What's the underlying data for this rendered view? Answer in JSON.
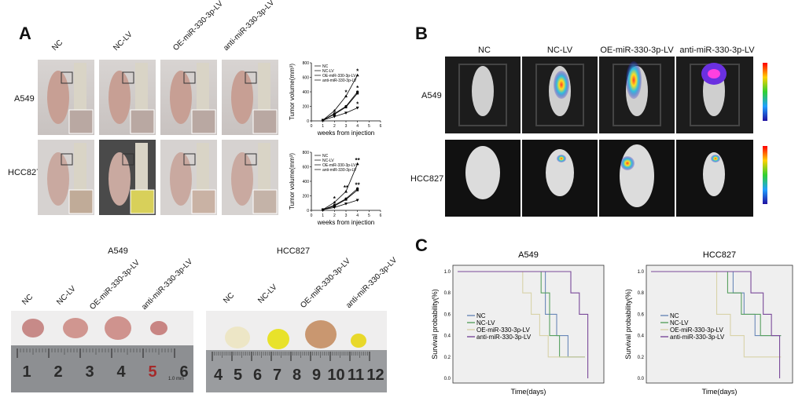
{
  "panels": {
    "a": {
      "letter": "A",
      "columns": [
        "NC",
        "NC-LV",
        "OE-miR-330-3p-LV",
        "anti-miR-330-3p-LV"
      ],
      "rows": [
        "A549",
        "HCC827"
      ]
    },
    "b": {
      "letter": "B",
      "columns": [
        "NC",
        "NC-LV",
        "OE-miR-330-3p-LV",
        "anti-miR-330-3p-LV"
      ],
      "rows": [
        "A549",
        "HCC827"
      ]
    },
    "c": {
      "letter": "C"
    },
    "tumors": {
      "left_title": "A549",
      "right_title": "HCC827",
      "left_labels": [
        "NC",
        "NC-LV",
        "OE-miR-330-3p-LV",
        "anti-miR-330-3p-LV"
      ],
      "right_labels": [
        "NC",
        "NC-LV",
        "OE-miR-330-3p-LV",
        "anti-miR-330-3p-LV"
      ],
      "left_ruler": [
        "1",
        "2",
        "3",
        "4",
        "5",
        "6"
      ],
      "left_ruler_unit": "1.0 mm",
      "right_ruler": [
        "4",
        "5",
        "6",
        "7",
        "8",
        "9",
        "10",
        "11",
        "12"
      ]
    }
  },
  "chart_data": [
    {
      "type": "line",
      "id": "a549-volume",
      "ylabel": "Tumor volume(mm³)",
      "xlabel": "weeks from injection",
      "xlim": [
        0,
        6
      ],
      "ylim": [
        0,
        800
      ],
      "xticks": [
        "0",
        "1",
        "2",
        "3",
        "4",
        "5",
        "6"
      ],
      "yticks": [
        "0",
        "200",
        "400",
        "600",
        "800"
      ],
      "x": [
        1,
        2,
        3,
        4
      ],
      "series": [
        {
          "name": "NC",
          "values": [
            10,
            100,
            200,
            400
          ]
        },
        {
          "name": "NC-LV",
          "values": [
            10,
            90,
            190,
            380
          ]
        },
        {
          "name": "OE-miR-330-3p-LV",
          "values": [
            10,
            140,
            340,
            630
          ]
        },
        {
          "name": "anti-miR-330-3p-LV",
          "values": [
            10,
            60,
            110,
            180
          ]
        }
      ],
      "annotations": [
        {
          "x": 3,
          "y": 340,
          "text": "*"
        },
        {
          "x": 4,
          "y": 630,
          "text": "*"
        },
        {
          "x": 4,
          "y": 400,
          "text": "*"
        },
        {
          "x": 4,
          "y": 180,
          "text": "*"
        }
      ]
    },
    {
      "type": "line",
      "id": "hcc827-volume",
      "ylabel": "Tumor volume(mm³)",
      "xlabel": "weeks from injection",
      "xlim": [
        0,
        6
      ],
      "ylim": [
        0,
        800
      ],
      "xticks": [
        "0",
        "1",
        "2",
        "3",
        "4",
        "5",
        "6"
      ],
      "yticks": [
        "0",
        "200",
        "400",
        "600",
        "800"
      ],
      "x": [
        1,
        2,
        3,
        4
      ],
      "series": [
        {
          "name": "NC",
          "values": [
            10,
            70,
            160,
            300
          ]
        },
        {
          "name": "NC-LV",
          "values": [
            10,
            60,
            150,
            280
          ]
        },
        {
          "name": "OE-miR-330-3p-LV",
          "values": [
            10,
            110,
            260,
            640
          ]
        },
        {
          "name": "anti-miR-330-3p-LV",
          "values": [
            10,
            40,
            90,
            140
          ]
        }
      ],
      "annotations": [
        {
          "x": 2,
          "y": 110,
          "text": "*"
        },
        {
          "x": 3,
          "y": 260,
          "text": "**"
        },
        {
          "x": 4,
          "y": 640,
          "text": "**"
        },
        {
          "x": 4,
          "y": 300,
          "text": "**"
        }
      ]
    },
    {
      "type": "line",
      "id": "a549-survival",
      "title": "A549",
      "ylabel": "Survival probability(%)",
      "xlabel": "Time(days)",
      "ylim": [
        0,
        1
      ],
      "yticks": [
        "0.0",
        "0.2",
        "0.4",
        "0.6",
        "0.8",
        "1.0"
      ],
      "series": [
        {
          "name": "NC",
          "color": "#6a88b8",
          "steps": [
            [
              0,
              1.0
            ],
            [
              0.62,
              1.0
            ],
            [
              0.62,
              0.6
            ],
            [
              0.7,
              0.6
            ],
            [
              0.7,
              0.4
            ],
            [
              0.78,
              0.4
            ],
            [
              0.78,
              0.2
            ],
            [
              0.9,
              0.2
            ]
          ]
        },
        {
          "name": "NC-LV",
          "color": "#58a060",
          "steps": [
            [
              0,
              1.0
            ],
            [
              0.59,
              1.0
            ],
            [
              0.59,
              0.8
            ],
            [
              0.65,
              0.8
            ],
            [
              0.65,
              0.4
            ],
            [
              0.72,
              0.4
            ],
            [
              0.72,
              0.2
            ],
            [
              0.9,
              0.2
            ]
          ]
        },
        {
          "name": "OE-miR-330-3p-LV",
          "color": "#d8d2a8",
          "steps": [
            [
              0,
              1.0
            ],
            [
              0.46,
              1.0
            ],
            [
              0.46,
              0.8
            ],
            [
              0.52,
              0.8
            ],
            [
              0.52,
              0.6
            ],
            [
              0.58,
              0.6
            ],
            [
              0.58,
              0.4
            ],
            [
              0.64,
              0.4
            ],
            [
              0.64,
              0.2
            ],
            [
              0.9,
              0.2
            ]
          ]
        },
        {
          "name": "anti-miR-330-3p-LV",
          "color": "#7a4a9a",
          "steps": [
            [
              0,
              1.0
            ],
            [
              0.8,
              1.0
            ],
            [
              0.8,
              0.8
            ],
            [
              0.86,
              0.8
            ],
            [
              0.86,
              0.6
            ],
            [
              0.92,
              0.6
            ],
            [
              0.92,
              0.0
            ]
          ]
        }
      ]
    },
    {
      "type": "line",
      "id": "hcc827-survival",
      "title": "HCC827",
      "ylabel": "Survival probability(%)",
      "xlabel": "Time(days)",
      "ylim": [
        0,
        1
      ],
      "yticks": [
        "0.0",
        "0.2",
        "0.4",
        "0.6",
        "0.8",
        "1.0"
      ],
      "series": [
        {
          "name": "NC",
          "color": "#6a88b8",
          "steps": [
            [
              0,
              1.0
            ],
            [
              0.6,
              1.0
            ],
            [
              0.6,
              0.8
            ],
            [
              0.68,
              0.8
            ],
            [
              0.68,
              0.6
            ],
            [
              0.76,
              0.6
            ],
            [
              0.76,
              0.4
            ],
            [
              0.95,
              0.4
            ]
          ]
        },
        {
          "name": "NC-LV",
          "color": "#58a060",
          "steps": [
            [
              0,
              1.0
            ],
            [
              0.56,
              1.0
            ],
            [
              0.56,
              0.8
            ],
            [
              0.66,
              0.8
            ],
            [
              0.66,
              0.6
            ],
            [
              0.8,
              0.6
            ],
            [
              0.8,
              0.4
            ],
            [
              0.95,
              0.4
            ]
          ]
        },
        {
          "name": "OE-miR-330-3p-LV",
          "color": "#d8d2a8",
          "steps": [
            [
              0,
              1.0
            ],
            [
              0.48,
              1.0
            ],
            [
              0.48,
              0.6
            ],
            [
              0.58,
              0.6
            ],
            [
              0.58,
              0.4
            ],
            [
              0.68,
              0.4
            ],
            [
              0.68,
              0.2
            ],
            [
              0.95,
              0.2
            ]
          ]
        },
        {
          "name": "anti-miR-330-3p-LV",
          "color": "#7a4a9a",
          "steps": [
            [
              0,
              1.0
            ],
            [
              0.73,
              1.0
            ],
            [
              0.73,
              0.8
            ],
            [
              0.82,
              0.8
            ],
            [
              0.82,
              0.6
            ],
            [
              0.88,
              0.6
            ],
            [
              0.88,
              0.4
            ],
            [
              0.94,
              0.4
            ],
            [
              0.94,
              0.0
            ]
          ]
        }
      ]
    }
  ]
}
